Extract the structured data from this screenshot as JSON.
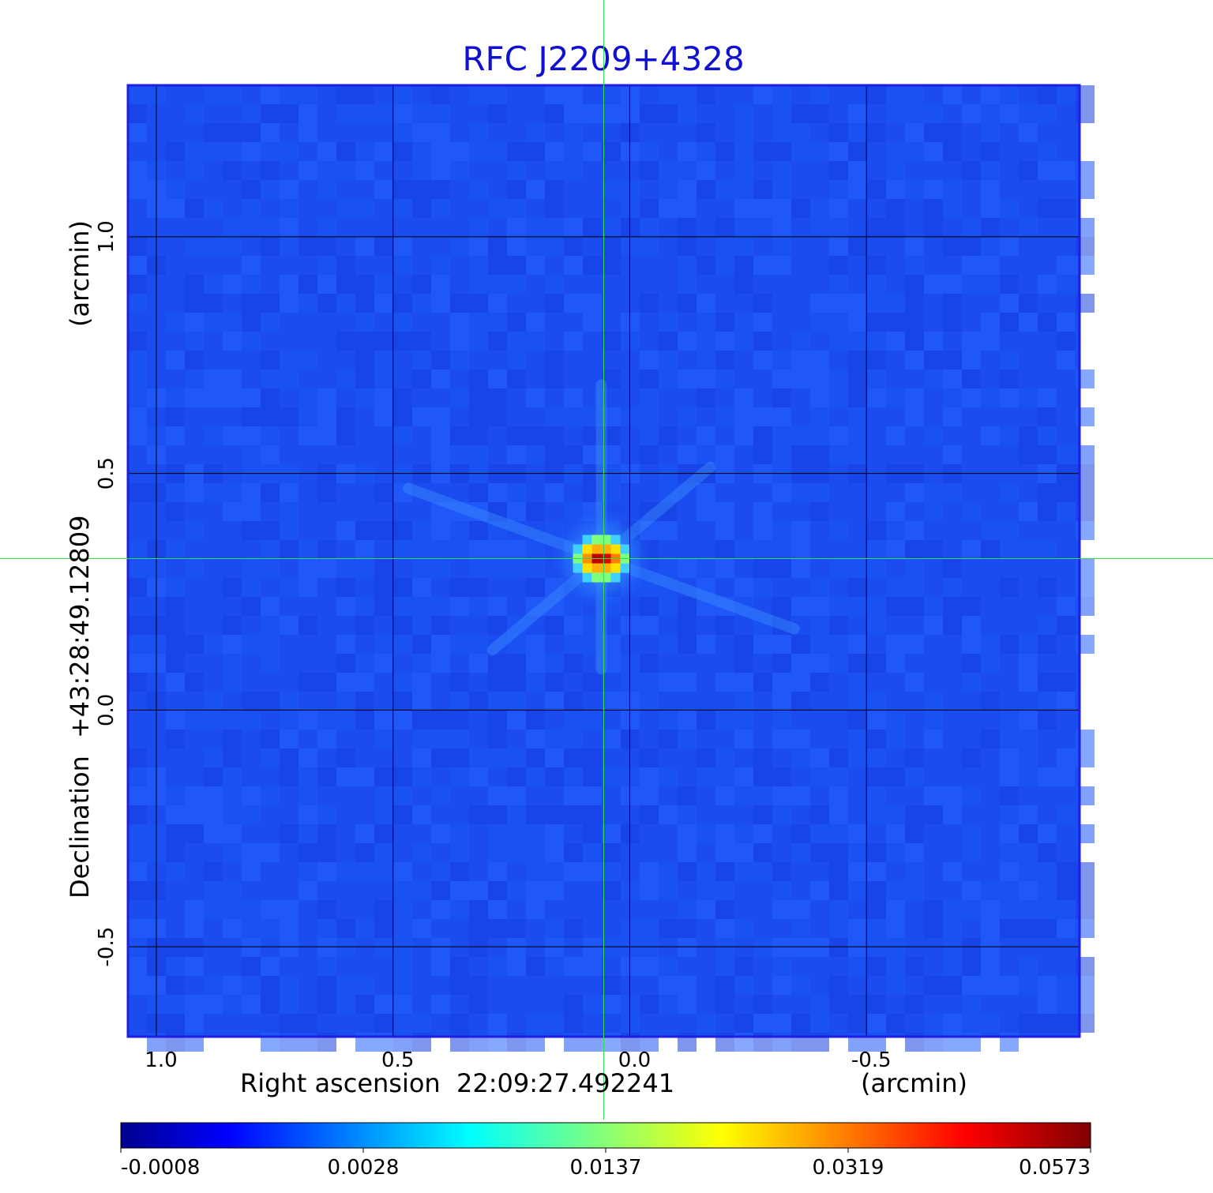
{
  "chart_data": {
    "type": "heatmap",
    "title": "RFC J2209+4328",
    "xlabel_prefix": "Right ascension",
    "xlabel_center": "22:09:27.492241",
    "xlabel_unit": "(arcmin)",
    "ylabel_prefix": "Declination",
    "ylabel_center": "+43:28:49.12809",
    "ylabel_unit": "(arcmin)",
    "x_ticks": [
      {
        "value": 1.0,
        "label": "1.0"
      },
      {
        "value": 0.5,
        "label": "0.5"
      },
      {
        "value": 0.0,
        "label": "0.0"
      },
      {
        "value": -0.5,
        "label": "-0.5"
      }
    ],
    "y_ticks": [
      {
        "value": 1.0,
        "label": "1.0"
      },
      {
        "value": 0.5,
        "label": "0.5"
      },
      {
        "value": 0.0,
        "label": "0.0"
      },
      {
        "value": -0.5,
        "label": "-0.5"
      }
    ],
    "xlim": [
      1.06,
      -0.95
    ],
    "ylim": [
      -0.69,
      1.32
    ],
    "grid": true,
    "source_peak": {
      "x": 0.06,
      "y": 0.32,
      "value": 0.0573
    },
    "crosshair": {
      "x": 0.055,
      "y": 0.32
    },
    "colorbar": {
      "labels": [
        "-0.0008",
        "0.0028",
        "0.0137",
        "0.0319",
        "0.0573"
      ],
      "min": -0.0008,
      "max": 0.0573,
      "colormap": "jet"
    },
    "colors": {
      "title": "#1010d0",
      "frame": "#1e1ee6",
      "grid": "#000000",
      "crosshair": "#33dd55",
      "background_field": "#1a4cf0"
    }
  }
}
